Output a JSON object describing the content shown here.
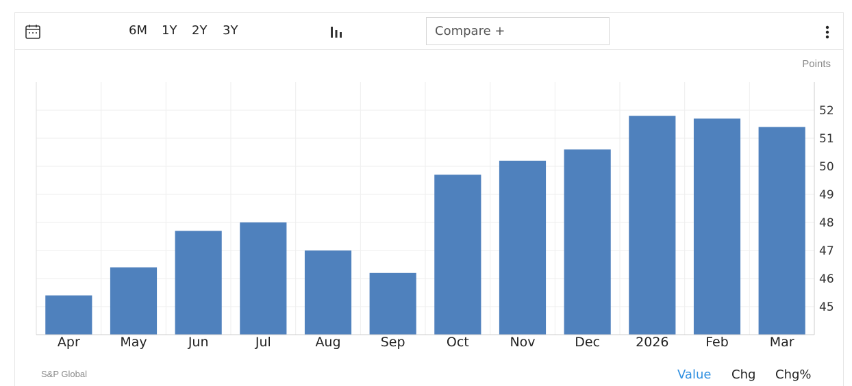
{
  "toolbar": {
    "calendar_icon": "calendar-icon",
    "ranges": [
      "6M",
      "1Y",
      "2Y",
      "3Y"
    ],
    "chart_type_icon": "bar-chart-icon",
    "compare_placeholder": "Compare +",
    "more_icon": "more-vertical-icon"
  },
  "unit_label": "Points",
  "source": "S&P Global",
  "tabs": {
    "value": "Value",
    "chg": "Chg",
    "chg_pct": "Chg%",
    "active": "Value"
  },
  "colors": {
    "bar": "#4f81bd",
    "active_tab": "#2e8fe0",
    "grid": "#eeeeee"
  },
  "chart_data": {
    "type": "bar",
    "categories": [
      "Apr",
      "May",
      "Jun",
      "Jul",
      "Aug",
      "Sep",
      "Oct",
      "Nov",
      "Dec",
      "2026",
      "Feb",
      "Mar"
    ],
    "values": [
      45.4,
      46.4,
      47.7,
      48.0,
      47.0,
      46.2,
      49.7,
      50.2,
      50.6,
      51.8,
      51.7,
      51.4
    ],
    "title": "",
    "xlabel": "",
    "ylabel": "Points",
    "ylim": [
      44,
      53
    ],
    "yticks": [
      45,
      46,
      47,
      48,
      49,
      50,
      51,
      52
    ],
    "grid": true,
    "y_axis_side": "right"
  }
}
